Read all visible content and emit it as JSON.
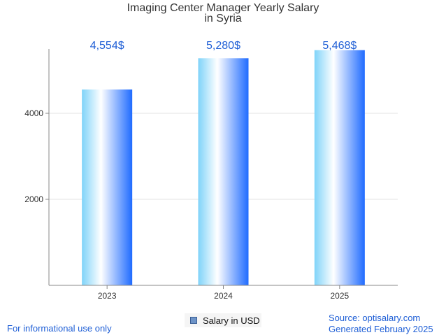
{
  "chart_data": {
    "type": "bar",
    "title": "Imaging Center Manager Yearly Salary",
    "subtitle": "in Syria",
    "categories": [
      "2023",
      "2024",
      "2025"
    ],
    "values": [
      4554,
      5280,
      5468
    ],
    "value_labels": [
      "4,554$",
      "5,280$",
      "5,468$"
    ],
    "y_ticks": [
      2000,
      4000
    ],
    "y_tick_labels": [
      "2000",
      "4000"
    ],
    "ylim": [
      0,
      5500
    ],
    "grid": true,
    "legend": {
      "position": "bottom-center",
      "label": "Salary in USD"
    }
  },
  "colors": {
    "bar_light": "#ffffff",
    "bar_mid": "#7fd3f9",
    "bar_dark": "#1f6bff",
    "label": "#1f5fd6",
    "grid": "#e3e3e3",
    "axis": "#888888"
  },
  "footer": {
    "disclaimer": "For informational use only",
    "source": "Source: optisalary.com",
    "generated": "Generated February 2025"
  }
}
